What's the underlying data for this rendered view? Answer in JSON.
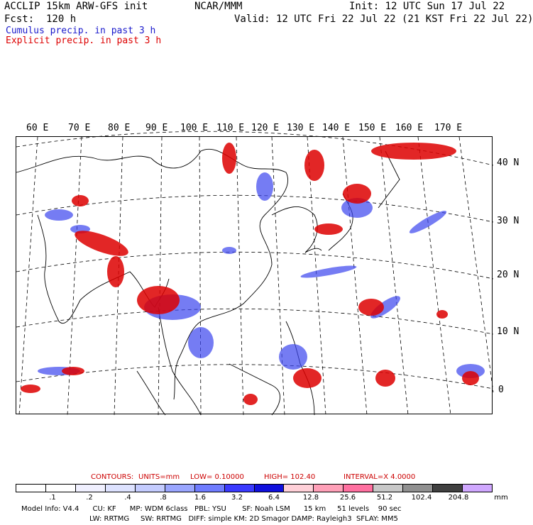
{
  "header": {
    "model": "ACCLIP 15km ARW-GFS init",
    "center": "NCAR/MMM",
    "init": "Init: 12 UTC Sun 17 Jul 22",
    "fcst": "Fcst:  120 h",
    "valid": "Valid: 12 UTC Fri 22 Jul 22 (21 KST Fri 22 Jul 22)",
    "cumulus": "Cumulus precip. in past 3 h",
    "explicit": "Explicit precip. in past 3 h"
  },
  "colors": {
    "cumulus": "#1a1acc",
    "explicit": "#dd0000",
    "contour": "#ee0000"
  },
  "longitude_labels": [
    "60 E",
    "70 E",
    "80 E",
    "90 E",
    "100 E",
    "110 E",
    "120 E",
    "130 E",
    "140 E",
    "150 E",
    "160 E",
    "170 E"
  ],
  "latitude_labels": [
    "40 N",
    "30 N",
    "20 N",
    "10 N",
    "0"
  ],
  "contours_info": {
    "label": "CONTOURS:",
    "units": "UNITS=mm",
    "low": "LOW= 0.10000",
    "high": "HIGH=  102.40",
    "interval": "INTERVAL=X  4.0000"
  },
  "colorbar": {
    "labels": [
      ".1",
      ".2",
      ".4",
      ".8",
      "1.6",
      "3.2",
      "6.4",
      "12.8",
      "25.6",
      "51.2",
      "102.4",
      "204.8"
    ],
    "unit": "mm",
    "colors": [
      "#ffffff",
      "#ffffff",
      "#f0f0ff",
      "#dde2ff",
      "#c4ccff",
      "#9aa6ff",
      "#6f7cff",
      "#3a3aff",
      "#1010dd",
      "#ffd0d8",
      "#ffa0b8",
      "#ff70a0",
      "#c8c8c8",
      "#909090",
      "#404040",
      "#d0a8ff"
    ]
  },
  "footer": {
    "line1": "Model Info: V4.4      CU: KF      MP: WDM 6class   PBL: YSU       SF: Noah LSM      15 km     51 levels    90 sec",
    "line2": "LW: RRTMG     SW: RRTMG   DIFF: simple KM: 2D Smagor DAMP: Rayleigh3  SFLAY: MM5"
  }
}
